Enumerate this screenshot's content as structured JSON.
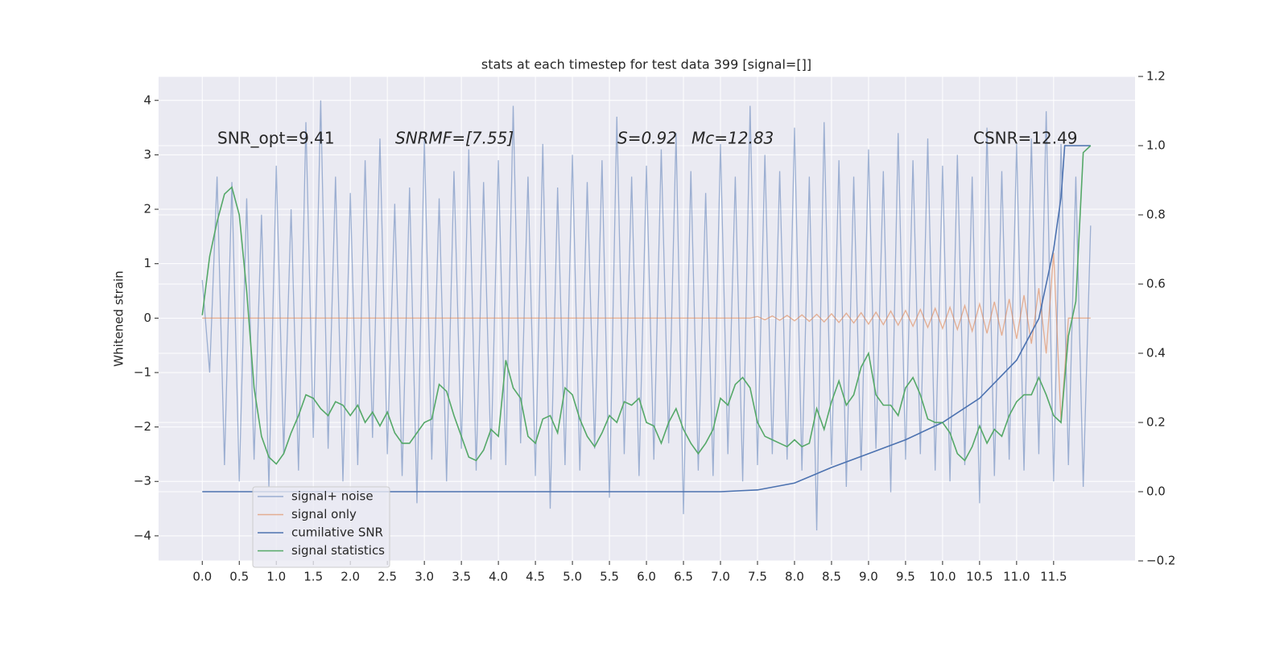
{
  "chart_data": {
    "type": "line",
    "title": "stats at each timestep for test data 399 [signal=[]]",
    "ylabel": "Whitened strain",
    "annotations": [
      "SNR_opt=9.41",
      "SNRMF=[7.55]",
      "S=0.92",
      "Mc=12.83",
      "CSNR=12.49"
    ],
    "background": "#eaeaf2",
    "grid": true,
    "legend_loc": "lower left",
    "xlim": [
      -0.59,
      12.6
    ],
    "ylim": [
      -4.46,
      4.44
    ],
    "y2lim": [
      -0.2,
      1.2
    ],
    "xticks": [
      {
        "value": 0,
        "label": "0.0"
      },
      0.5,
      {
        "value": 1,
        "label": "1.0"
      },
      1.5,
      {
        "value": 2,
        "label": "2.0"
      },
      2.5,
      {
        "value": 3,
        "label": "3.0"
      },
      3.5,
      {
        "value": 4,
        "label": "4.0"
      },
      4.5,
      {
        "value": 5,
        "label": "5.0"
      },
      5.5,
      {
        "value": 6,
        "label": "6.0"
      },
      6.5,
      {
        "value": 7,
        "label": "7.0"
      },
      7.5,
      {
        "value": 8,
        "label": "8.0"
      },
      8.5,
      {
        "value": 9,
        "label": "9.0"
      },
      9.5,
      {
        "value": 10,
        "label": "10.0"
      },
      10.5,
      {
        "value": 11,
        "label": "11.0"
      },
      11.5
    ],
    "yticks": [
      {
        "value": -4,
        "label": "−4"
      },
      {
        "value": -3,
        "label": "−3"
      },
      {
        "value": -2,
        "label": "−2"
      },
      {
        "value": -1,
        "label": "−1"
      },
      0,
      1,
      2,
      3,
      4
    ],
    "y2ticks": [
      {
        "value": -0.2,
        "label": "−0.2"
      },
      {
        "value": 0,
        "label": "0.0"
      },
      0.2,
      0.4,
      0.6,
      0.8,
      {
        "value": 1,
        "label": "1.0"
      },
      1.2
    ],
    "x": [
      0,
      0.1,
      0.2,
      0.3,
      0.4,
      0.5,
      0.6,
      0.7,
      0.8,
      0.9,
      1,
      1.1,
      1.2,
      1.3,
      1.4,
      1.5,
      1.6,
      1.7,
      1.8,
      1.9,
      2,
      2.1,
      2.2,
      2.3,
      2.4,
      2.5,
      2.6,
      2.7,
      2.8,
      2.9,
      3,
      3.1,
      3.2,
      3.3,
      3.4,
      3.5,
      3.6,
      3.7,
      3.8,
      3.9,
      4,
      4.1,
      4.2,
      4.3,
      4.4,
      4.5,
      4.6,
      4.7,
      4.8,
      4.9,
      5,
      5.1,
      5.2,
      5.3,
      5.4,
      5.5,
      5.6,
      5.7,
      5.8,
      5.9,
      6,
      6.1,
      6.2,
      6.3,
      6.4,
      6.5,
      6.6,
      6.7,
      6.8,
      6.9,
      7,
      7.1,
      7.2,
      7.3,
      7.4,
      7.5,
      7.6,
      7.7,
      7.8,
      7.9,
      8,
      8.1,
      8.2,
      8.3,
      8.4,
      8.5,
      8.6,
      8.7,
      8.8,
      8.9,
      9,
      9.1,
      9.2,
      9.3,
      9.4,
      9.5,
      9.6,
      9.7,
      9.8,
      9.9,
      10,
      10.1,
      10.2,
      10.3,
      10.4,
      10.5,
      10.6,
      10.7,
      10.8,
      10.9,
      11,
      11.1,
      11.2,
      11.3,
      11.4,
      11.5,
      11.6,
      11.7,
      11.8,
      11.9,
      12
    ],
    "series": [
      {
        "name": "signal+ noise",
        "color": "#4c72b0",
        "alpha": 0.5,
        "axis": "y",
        "values": [
          0.7,
          -1.0,
          2.6,
          -2.7,
          2.5,
          -3.0,
          2.2,
          -2.6,
          1.9,
          -3.1,
          2.8,
          -2.5,
          2.0,
          -2.8,
          3.6,
          -2.2,
          4.0,
          -2.4,
          2.6,
          -3.0,
          2.3,
          -2.7,
          2.9,
          -2.2,
          3.3,
          -2.5,
          2.1,
          -2.9,
          2.4,
          -3.4,
          3.3,
          -2.6,
          2.2,
          -3.0,
          2.7,
          -2.4,
          3.1,
          -2.8,
          2.5,
          -2.6,
          2.9,
          -2.7,
          3.9,
          -2.3,
          2.6,
          -2.9,
          3.2,
          -3.5,
          2.4,
          -2.7,
          3.0,
          -2.8,
          2.5,
          -2.4,
          2.9,
          -3.3,
          3.7,
          -2.5,
          2.6,
          -2.9,
          2.8,
          -2.6,
          3.1,
          -2.3,
          3.4,
          -3.6,
          2.7,
          -2.8,
          2.3,
          -2.9,
          3.2,
          -2.5,
          2.6,
          -3.0,
          3.9,
          -2.7,
          3.0,
          -2.5,
          2.7,
          -2.6,
          3.5,
          -2.8,
          2.6,
          -3.9,
          3.6,
          -2.7,
          2.9,
          -3.1,
          2.6,
          -2.8,
          3.1,
          -2.4,
          2.7,
          -3.2,
          3.4,
          -2.6,
          2.9,
          -2.5,
          3.3,
          -2.8,
          2.8,
          -3.0,
          3.0,
          -2.7,
          2.6,
          -3.4,
          3.5,
          -2.9,
          2.7,
          -2.6,
          3.2,
          -2.8,
          3.3,
          -2.5,
          3.8,
          -3.0,
          3.2,
          -2.7,
          2.6,
          -3.1,
          1.7
        ]
      },
      {
        "name": "signal only",
        "color": "#dd8452",
        "alpha": 0.6,
        "axis": "y",
        "x": [
          0,
          7.4,
          7.5,
          7.6,
          7.7,
          7.8,
          7.9,
          8,
          8.1,
          8.2,
          8.3,
          8.4,
          8.5,
          8.6,
          8.7,
          8.8,
          8.9,
          9,
          9.1,
          9.2,
          9.3,
          9.4,
          9.5,
          9.6,
          9.7,
          9.8,
          9.9,
          10,
          10.1,
          10.2,
          10.3,
          10.4,
          10.5,
          10.6,
          10.7,
          10.8,
          10.9,
          11,
          11.1,
          11.2,
          11.3,
          11.4,
          11.5,
          11.6,
          11.7,
          12
        ],
        "values": [
          0,
          0,
          0.03,
          -0.03,
          0.04,
          -0.04,
          0.05,
          -0.05,
          0.06,
          -0.06,
          0.07,
          -0.07,
          0.08,
          -0.08,
          0.09,
          -0.09,
          0.1,
          -0.11,
          0.11,
          -0.12,
          0.13,
          -0.13,
          0.14,
          -0.15,
          0.16,
          -0.17,
          0.18,
          -0.19,
          0.2,
          -0.21,
          0.23,
          -0.24,
          0.26,
          -0.28,
          0.3,
          -0.32,
          0.35,
          -0.38,
          0.42,
          -0.47,
          0.55,
          -0.65,
          1.2,
          -1.9,
          0,
          0
        ]
      },
      {
        "name": "cumilative SNR",
        "color": "#4c72b0",
        "alpha": 1,
        "axis": "y2",
        "x": [
          0,
          7,
          7.5,
          8,
          8.5,
          9,
          9.5,
          10,
          10.5,
          11,
          11.3,
          11.5,
          11.6,
          11.65,
          12
        ],
        "values": [
          0,
          0,
          0.005,
          0.025,
          0.07,
          0.11,
          0.15,
          0.2,
          0.27,
          0.38,
          0.5,
          0.7,
          0.85,
          1.0,
          1.0
        ]
      },
      {
        "name": "signal statistics",
        "color": "#55a868",
        "alpha": 1,
        "axis": "y2",
        "values": [
          0.51,
          0.68,
          0.78,
          0.86,
          0.88,
          0.8,
          0.58,
          0.3,
          0.16,
          0.1,
          0.08,
          0.11,
          0.17,
          0.22,
          0.28,
          0.27,
          0.24,
          0.22,
          0.26,
          0.25,
          0.22,
          0.25,
          0.2,
          0.23,
          0.19,
          0.23,
          0.17,
          0.14,
          0.14,
          0.17,
          0.2,
          0.21,
          0.31,
          0.29,
          0.22,
          0.16,
          0.1,
          0.09,
          0.12,
          0.18,
          0.16,
          0.38,
          0.3,
          0.27,
          0.16,
          0.14,
          0.21,
          0.22,
          0.17,
          0.3,
          0.28,
          0.21,
          0.16,
          0.13,
          0.17,
          0.22,
          0.2,
          0.26,
          0.25,
          0.27,
          0.2,
          0.19,
          0.14,
          0.2,
          0.24,
          0.18,
          0.14,
          0.11,
          0.14,
          0.18,
          0.27,
          0.25,
          0.31,
          0.33,
          0.3,
          0.2,
          0.16,
          0.15,
          0.14,
          0.13,
          0.15,
          0.13,
          0.14,
          0.24,
          0.18,
          0.26,
          0.32,
          0.25,
          0.28,
          0.36,
          0.4,
          0.28,
          0.25,
          0.25,
          0.22,
          0.3,
          0.33,
          0.28,
          0.21,
          0.2,
          0.2,
          0.17,
          0.11,
          0.09,
          0.13,
          0.19,
          0.14,
          0.18,
          0.16,
          0.22,
          0.26,
          0.28,
          0.28,
          0.33,
          0.28,
          0.22,
          0.2,
          0.45,
          0.55,
          0.98,
          1.0
        ]
      }
    ]
  }
}
